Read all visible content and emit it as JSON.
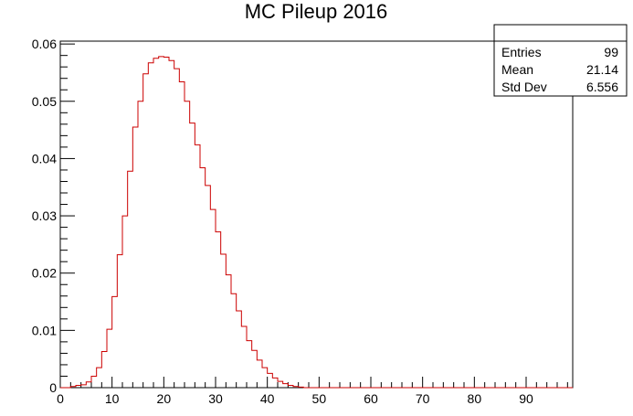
{
  "chart_data": {
    "type": "bar",
    "title": "MC Pileup 2016",
    "xlabel": "",
    "ylabel": "",
    "xlim": [
      0,
      99
    ],
    "ylim": [
      0,
      0.0605
    ],
    "line_color": "#cc0000",
    "bins": {
      "width": 1,
      "start": 0,
      "values": [
        0,
        0,
        0.0002,
        0.0004,
        0.0005,
        0.001,
        0.002,
        0.0035,
        0.0063,
        0.0102,
        0.0159,
        0.0232,
        0.03,
        0.0378,
        0.0455,
        0.05,
        0.0548,
        0.0567,
        0.0575,
        0.0578,
        0.0577,
        0.0571,
        0.0557,
        0.0534,
        0.05,
        0.0462,
        0.0424,
        0.0384,
        0.0353,
        0.0311,
        0.0272,
        0.0233,
        0.0197,
        0.0164,
        0.0134,
        0.0107,
        0.0082,
        0.0065,
        0.0048,
        0.0035,
        0.0025,
        0.0017,
        0.0011,
        0.0007,
        0.0004,
        0.0002,
        0.0001,
        0,
        0,
        0,
        0,
        0,
        0,
        0,
        0,
        0,
        0,
        0,
        0,
        0,
        0,
        0,
        0,
        0,
        0,
        0,
        0,
        0,
        0,
        0,
        0,
        0,
        0,
        0,
        0,
        0,
        0,
        0,
        0,
        0,
        0,
        0,
        0,
        0,
        0,
        0,
        0,
        0,
        0,
        0,
        0,
        0,
        0,
        0,
        0,
        0,
        0,
        0,
        0
      ]
    },
    "x_ticks": [
      0,
      10,
      20,
      30,
      40,
      50,
      60,
      70,
      80,
      90
    ],
    "y_ticks": [
      0,
      0.01,
      0.02,
      0.03,
      0.04,
      0.05,
      0.06
    ],
    "y_tick_labels": [
      "0",
      "0.01",
      "0.02",
      "0.03",
      "0.04",
      "0.05",
      "0.06"
    ]
  },
  "stats_box": {
    "entries_label": "Entries",
    "entries_value": "99",
    "mean_label": "Mean",
    "mean_value": "21.14",
    "stddev_label": "Std Dev",
    "stddev_value": "6.556"
  }
}
